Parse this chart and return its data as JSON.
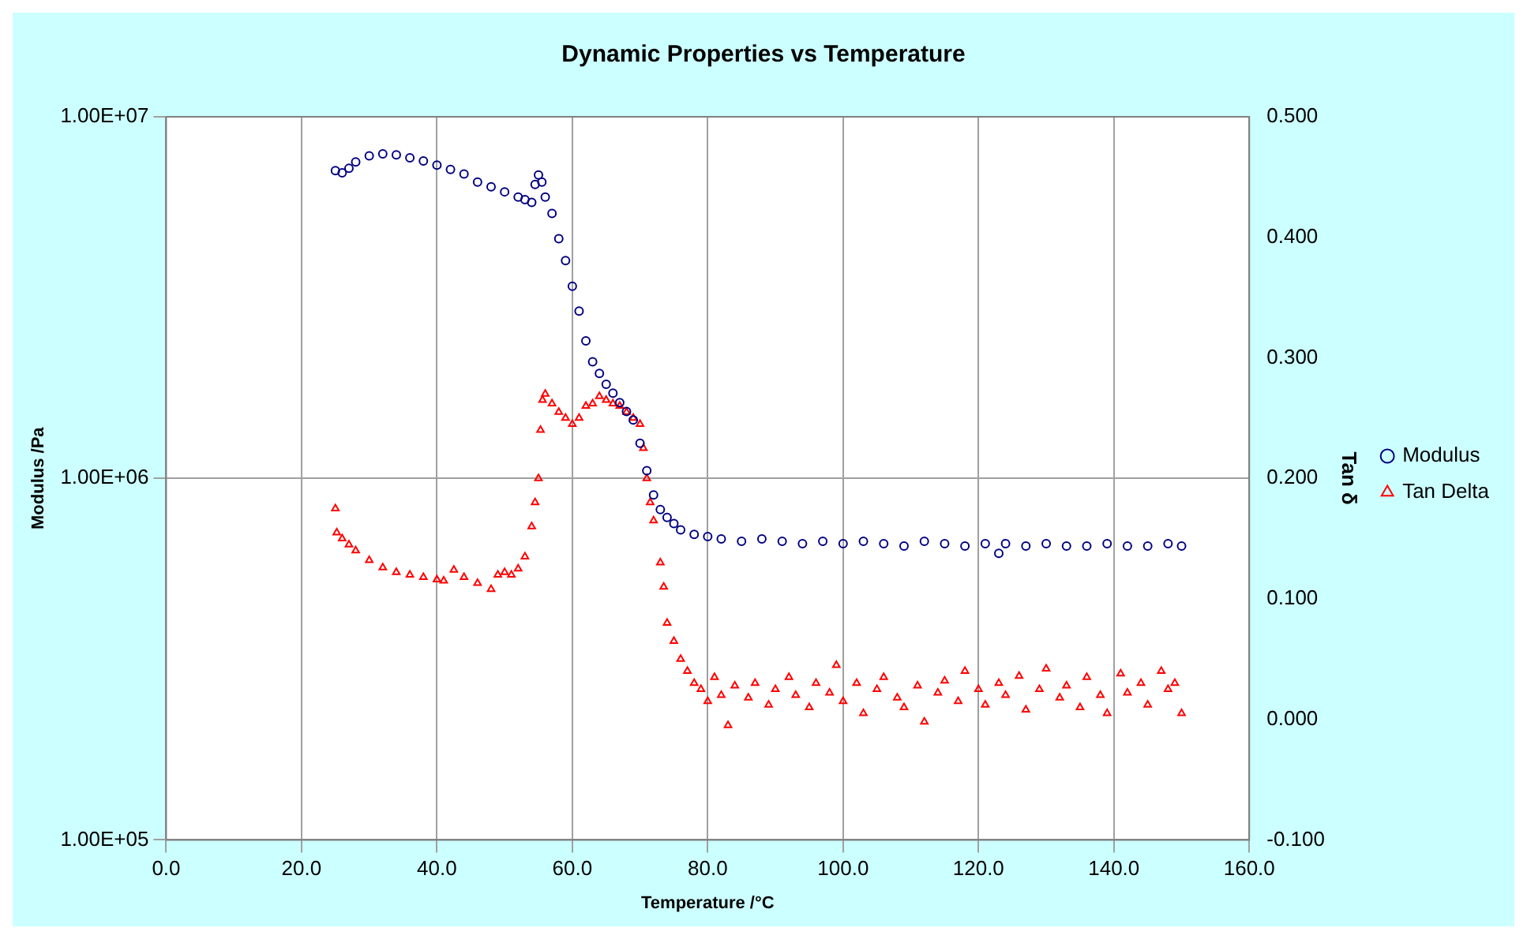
{
  "chart_data": {
    "type": "scatter",
    "title": "Dynamic Properties vs Temperature",
    "xlabel": "Temperature /°C",
    "ylabel": "Modulus /Pa",
    "y2label": "Tan δ",
    "xlim": [
      0,
      160
    ],
    "xticks": [
      {
        "value": 0,
        "label": "0.0"
      },
      {
        "value": 20,
        "label": "20.0"
      },
      {
        "value": 40,
        "label": "40.0"
      },
      {
        "value": 60,
        "label": "60.0"
      },
      {
        "value": 80,
        "label": "80.0"
      },
      {
        "value": 100,
        "label": "100.0"
      },
      {
        "value": 120,
        "label": "120.0"
      },
      {
        "value": 140,
        "label": "140.0"
      },
      {
        "value": 160,
        "label": "160.0"
      }
    ],
    "ylim": [
      100000,
      10000000
    ],
    "yticks": [
      {
        "value": 100000,
        "label": "1.00E+05"
      },
      {
        "value": 1000000,
        "label": "1.00E+06"
      },
      {
        "value": 10000000,
        "label": "1.00E+07"
      }
    ],
    "y2lim": [
      -0.1,
      0.5
    ],
    "y2ticks": [
      {
        "value": -0.1,
        "label": "-0.100"
      },
      {
        "value": 0,
        "label": "0.000"
      },
      {
        "value": 0.1,
        "label": "0.100"
      },
      {
        "value": 0.2,
        "label": "0.200"
      },
      {
        "value": 0.3,
        "label": "0.300"
      },
      {
        "value": 0.4,
        "label": "0.400"
      },
      {
        "value": 0.5,
        "label": "0.500"
      }
    ],
    "log": "y",
    "grid": true,
    "legend": "right",
    "series": [
      {
        "name": "Modulus",
        "color": "#000080",
        "marker": "circle",
        "x": [
          25,
          26,
          27,
          28,
          30,
          32,
          34,
          36,
          38,
          40,
          42,
          44,
          46,
          48,
          50,
          52,
          53,
          54,
          54.5,
          55,
          55.5,
          56,
          57,
          58,
          59,
          60,
          61,
          62,
          63,
          64,
          65,
          66,
          67,
          68,
          69,
          70,
          71,
          72,
          73,
          74,
          75,
          76,
          78,
          80,
          82,
          85,
          88,
          91,
          94,
          97,
          100,
          103,
          106,
          109,
          112,
          115,
          118,
          121,
          123,
          124,
          127,
          130,
          133,
          136,
          139,
          142,
          145,
          148,
          150
        ],
        "values": [
          7100000,
          7000000,
          7200000,
          7500000,
          7800000,
          7900000,
          7850000,
          7700000,
          7550000,
          7350000,
          7150000,
          6950000,
          6600000,
          6400000,
          6200000,
          6000000,
          5900000,
          5800000,
          6500000,
          6900000,
          6600000,
          6000000,
          5400000,
          4600000,
          4000000,
          3400000,
          2900000,
          2400000,
          2100000,
          1950000,
          1820000,
          1720000,
          1620000,
          1530000,
          1450000,
          1250000,
          1050000,
          900000,
          820000,
          780000,
          750000,
          720000,
          700000,
          690000,
          680000,
          670000,
          680000,
          670000,
          660000,
          670000,
          660000,
          670000,
          660000,
          650000,
          670000,
          660000,
          650000,
          660000,
          620000,
          660000,
          650000,
          660000,
          650000,
          650000,
          660000,
          650000,
          650000,
          660000,
          650000
        ]
      },
      {
        "name": "Tan Delta",
        "color": "#ff0000",
        "marker": "triangle",
        "axis": "y2",
        "x": [
          25,
          25.2,
          26,
          27,
          28,
          30,
          32,
          34,
          36,
          38,
          40,
          41,
          42.5,
          44,
          46,
          48,
          49,
          50,
          51,
          52,
          53,
          54,
          54.5,
          55,
          55.3,
          55.6,
          56,
          57,
          58,
          59,
          60,
          61,
          62,
          63,
          64,
          65,
          66,
          67,
          68,
          69,
          70,
          70.5,
          71,
          71.5,
          72,
          73,
          73.5,
          74,
          75,
          76,
          77,
          78,
          79,
          80,
          81,
          82,
          83,
          84,
          86,
          87,
          89,
          90,
          92,
          93,
          95,
          96,
          98,
          99,
          100,
          102,
          103,
          105,
          106,
          108,
          109,
          111,
          112,
          114,
          115,
          117,
          118,
          120,
          121,
          123,
          124,
          126,
          127,
          129,
          130,
          132,
          133,
          135,
          136,
          138,
          139,
          141,
          142,
          144,
          145,
          147,
          148,
          149,
          150
        ],
        "values": [
          0.175,
          0.155,
          0.15,
          0.145,
          0.14,
          0.132,
          0.126,
          0.122,
          0.12,
          0.118,
          0.116,
          0.115,
          0.124,
          0.118,
          0.113,
          0.108,
          0.12,
          0.122,
          0.12,
          0.125,
          0.135,
          0.16,
          0.18,
          0.2,
          0.24,
          0.265,
          0.27,
          0.262,
          0.255,
          0.25,
          0.245,
          0.25,
          0.26,
          0.262,
          0.268,
          0.265,
          0.262,
          0.26,
          0.255,
          0.25,
          0.245,
          0.225,
          0.2,
          0.18,
          0.165,
          0.13,
          0.11,
          0.08,
          0.065,
          0.05,
          0.04,
          0.03,
          0.025,
          0.015,
          0.035,
          0.02,
          -0.005,
          0.028,
          0.018,
          0.03,
          0.012,
          0.025,
          0.035,
          0.02,
          0.01,
          0.03,
          0.022,
          0.045,
          0.015,
          0.03,
          0.005,
          0.025,
          0.035,
          0.018,
          0.01,
          0.028,
          -0.002,
          0.022,
          0.032,
          0.015,
          0.04,
          0.025,
          0.012,
          0.03,
          0.02,
          0.036,
          0.008,
          0.025,
          0.042,
          0.018,
          0.028,
          0.01,
          0.035,
          0.02,
          0.005,
          0.038,
          0.022,
          0.03,
          0.012,
          0.04,
          0.025,
          0.03,
          0.005
        ]
      }
    ]
  }
}
